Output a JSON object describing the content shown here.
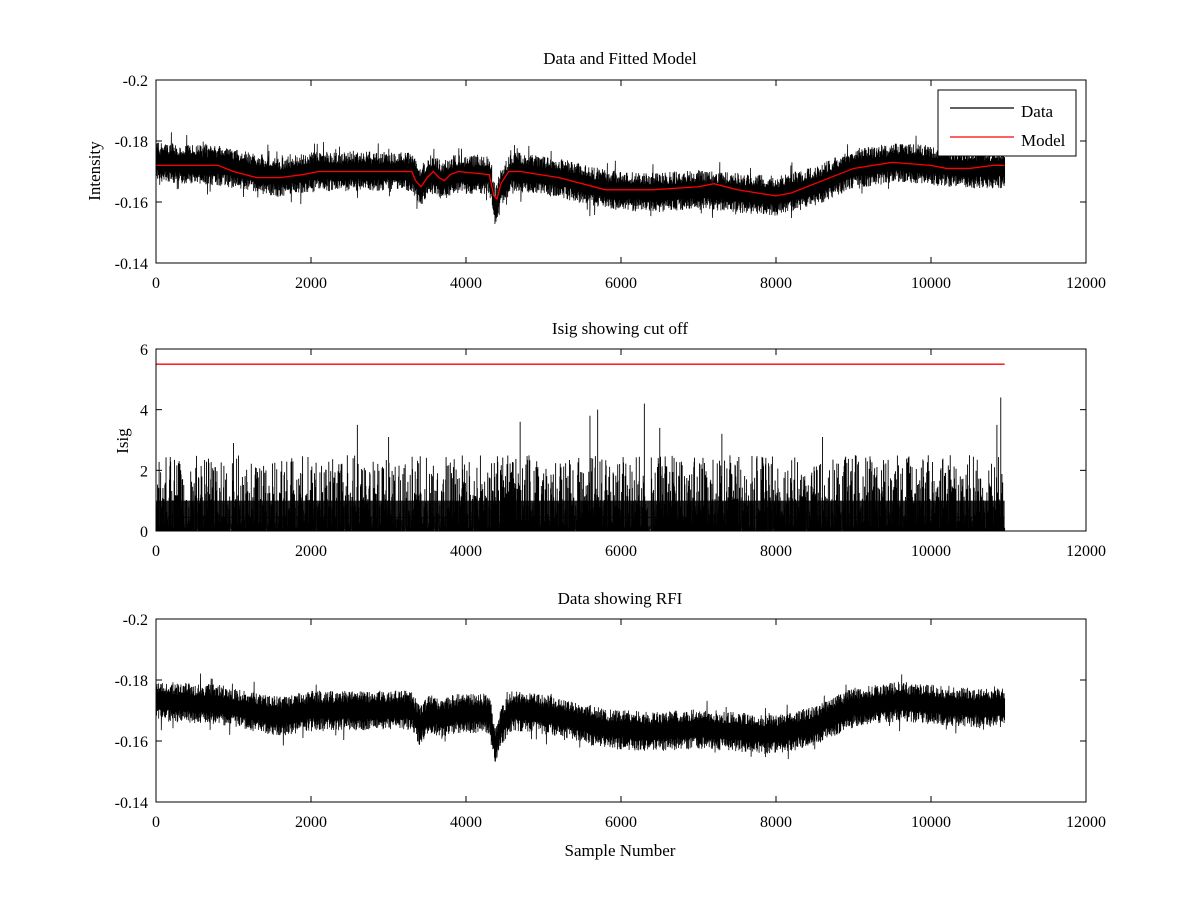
{
  "colors": {
    "data": "#000000",
    "model": "#ff0000",
    "background": "#ffffff"
  },
  "chart_data": [
    {
      "type": "line",
      "title": "Data and Fitted Model",
      "xlabel": "",
      "ylabel": "Intensity",
      "xlim": [
        0,
        12000
      ],
      "ylim": [
        -0.2,
        -0.14
      ],
      "y_reversed": true,
      "grid": false,
      "legend": "top-right",
      "xticks": [
        "0",
        "2000",
        "4000",
        "6000",
        "8000",
        "10000",
        "12000"
      ],
      "yticks": [
        "-0.14",
        "-0.16",
        "-0.18",
        "-0.2"
      ],
      "series": [
        {
          "name": "Data",
          "color": "#000000",
          "kind": "noisy",
          "n_samples": 10950,
          "noise_amplitude": 0.0045,
          "envelope_x": [
            0,
            800,
            1600,
            2000,
            2600,
            3300,
            3400,
            3550,
            3700,
            3850,
            4300,
            4380,
            4450,
            4600,
            5200,
            5800,
            6400,
            7000,
            7500,
            8000,
            8500,
            9000,
            9600,
            10000,
            10400,
            10950
          ],
          "envelope_y": [
            -0.173,
            -0.172,
            -0.168,
            -0.17,
            -0.17,
            -0.17,
            -0.165,
            -0.169,
            -0.167,
            -0.169,
            -0.169,
            -0.158,
            -0.165,
            -0.17,
            -0.168,
            -0.164,
            -0.163,
            -0.164,
            -0.163,
            -0.162,
            -0.165,
            -0.171,
            -0.173,
            -0.172,
            -0.171,
            -0.171
          ]
        },
        {
          "name": "Model",
          "color": "#ff0000",
          "kind": "line",
          "x": [
            0,
            800,
            1000,
            1300,
            1600,
            1900,
            2100,
            2600,
            3000,
            3300,
            3350,
            3420,
            3500,
            3580,
            3650,
            3720,
            3800,
            3900,
            4300,
            4360,
            4400,
            4450,
            4550,
            4700,
            5200,
            5800,
            6400,
            7000,
            7200,
            7500,
            8000,
            8200,
            8500,
            9000,
            9500,
            10000,
            10200,
            10500,
            10800,
            10950
          ],
          "y": [
            -0.172,
            -0.172,
            -0.17,
            -0.168,
            -0.168,
            -0.169,
            -0.17,
            -0.17,
            -0.17,
            -0.17,
            -0.167,
            -0.165,
            -0.168,
            -0.17,
            -0.168,
            -0.167,
            -0.169,
            -0.17,
            -0.169,
            -0.162,
            -0.161,
            -0.166,
            -0.17,
            -0.17,
            -0.168,
            -0.164,
            -0.164,
            -0.165,
            -0.166,
            -0.164,
            -0.162,
            -0.163,
            -0.166,
            -0.171,
            -0.173,
            -0.172,
            -0.171,
            -0.171,
            -0.172,
            -0.172
          ]
        }
      ]
    },
    {
      "type": "line",
      "title": "Isig showing cut off",
      "xlabel": "",
      "ylabel": "Isig",
      "xlim": [
        0,
        12000
      ],
      "ylim": [
        0,
        6
      ],
      "grid": false,
      "xticks": [
        "0",
        "2000",
        "4000",
        "6000",
        "8000",
        "10000",
        "12000"
      ],
      "yticks": [
        "0",
        "2",
        "4",
        "6"
      ],
      "series": [
        {
          "kind": "spikes",
          "color": "#000000",
          "n_samples": 10950,
          "typical_max": 2.5,
          "peaks": [
            {
              "x": 0,
              "y": 3.1
            },
            {
              "x": 1000,
              "y": 2.9
            },
            {
              "x": 2600,
              "y": 3.5
            },
            {
              "x": 3000,
              "y": 3.1
            },
            {
              "x": 4700,
              "y": 3.6
            },
            {
              "x": 5600,
              "y": 3.8
            },
            {
              "x": 5700,
              "y": 4.0
            },
            {
              "x": 6300,
              "y": 4.2
            },
            {
              "x": 6500,
              "y": 3.4
            },
            {
              "x": 7300,
              "y": 3.2
            },
            {
              "x": 8600,
              "y": 3.1
            },
            {
              "x": 10850,
              "y": 3.5
            },
            {
              "x": 10900,
              "y": 4.4
            }
          ]
        },
        {
          "kind": "line",
          "color": "#ff0000",
          "x": [
            0,
            10950
          ],
          "y": [
            5.5,
            5.5
          ]
        }
      ]
    },
    {
      "type": "line",
      "title": "Data showing RFI",
      "xlabel": "Sample Number",
      "ylabel": "",
      "xlim": [
        0,
        12000
      ],
      "ylim": [
        -0.2,
        -0.14
      ],
      "y_reversed": true,
      "grid": false,
      "xticks": [
        "0",
        "2000",
        "4000",
        "6000",
        "8000",
        "10000",
        "12000"
      ],
      "yticks": [
        "-0.14",
        "-0.16",
        "-0.18",
        "-0.2"
      ],
      "series": [
        {
          "kind": "noisy",
          "color": "#000000",
          "n_samples": 10950,
          "noise_amplitude": 0.0045,
          "envelope_x": [
            0,
            800,
            1600,
            2000,
            2600,
            3300,
            3400,
            3550,
            3700,
            3850,
            4300,
            4380,
            4450,
            4600,
            5200,
            5800,
            6400,
            7000,
            7500,
            8000,
            8500,
            9000,
            9600,
            10000,
            10400,
            10950
          ],
          "envelope_y": [
            -0.173,
            -0.172,
            -0.168,
            -0.17,
            -0.17,
            -0.17,
            -0.165,
            -0.169,
            -0.167,
            -0.169,
            -0.169,
            -0.158,
            -0.165,
            -0.17,
            -0.168,
            -0.164,
            -0.163,
            -0.164,
            -0.163,
            -0.162,
            -0.165,
            -0.171,
            -0.173,
            -0.172,
            -0.171,
            -0.171
          ]
        }
      ]
    }
  ]
}
